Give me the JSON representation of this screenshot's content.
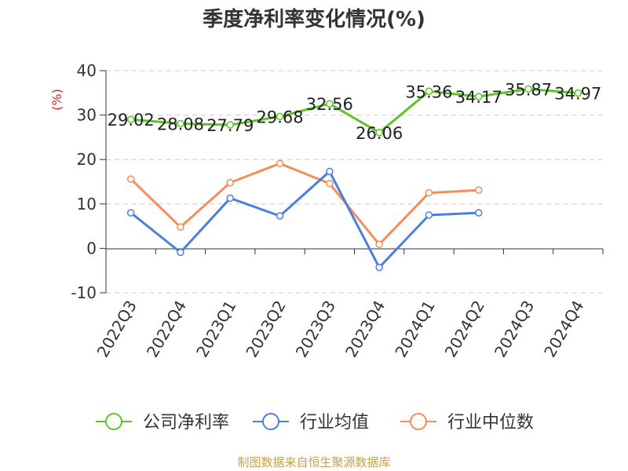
{
  "title": "季度净利率变化情况(%)",
  "source": "制图数据来自恒生聚源数据库",
  "chart_data": {
    "type": "line",
    "title": "季度净利率变化情况(%)",
    "ylabel": "(%)",
    "xlabel": "",
    "ylim": [
      -10,
      40
    ],
    "yticks": [
      -10,
      0,
      10,
      20,
      30,
      40
    ],
    "grid": true,
    "legend_position": "bottom",
    "categories": [
      "2022Q3",
      "2022Q4",
      "2023Q1",
      "2023Q2",
      "2023Q3",
      "2023Q4",
      "2024Q1",
      "2024Q2",
      "2024Q3",
      "2024Q4"
    ],
    "series": [
      {
        "name": "公司净利率",
        "color": "#5dc526",
        "show_labels": true,
        "values": [
          29.02,
          28.08,
          27.79,
          29.68,
          32.56,
          26.06,
          35.36,
          34.17,
          35.87,
          34.97
        ],
        "labels": [
          "29.02",
          "28.08",
          "27.79",
          "29.68",
          "32.56",
          "26.06",
          "35.36",
          "34.17",
          "35.87",
          "34.97"
        ]
      },
      {
        "name": "行业均值",
        "color": "#4a7fdc",
        "show_labels": false,
        "values": [
          8.0,
          -0.9,
          11.3,
          7.3,
          17.3,
          -4.3,
          7.5,
          8.0,
          null,
          null
        ]
      },
      {
        "name": "行业中位数",
        "color": "#f58d5b",
        "show_labels": false,
        "values": [
          15.6,
          4.8,
          14.8,
          19.1,
          14.6,
          0.9,
          12.5,
          13.1,
          null,
          null
        ]
      }
    ]
  }
}
